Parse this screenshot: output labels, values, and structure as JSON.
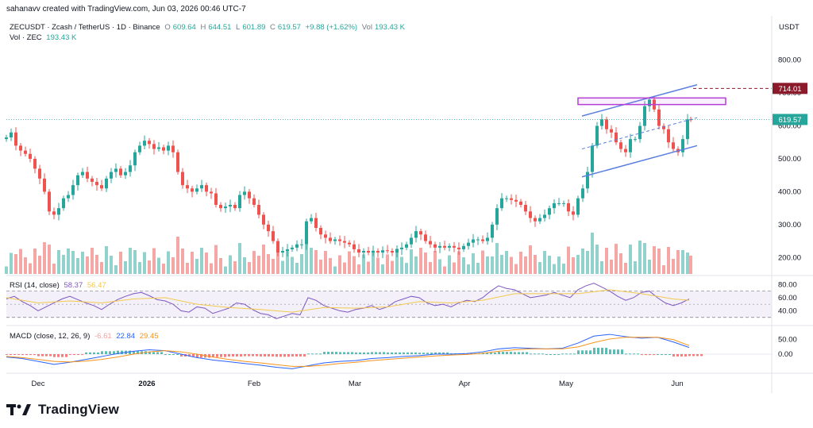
{
  "credit": "sahanavv created with TradingView.com, Jun 03, 2026 00:46 UTC-7",
  "legend": {
    "symbol": "ZECUSDT · Zcash / TetherUS · 1D · Binance",
    "open_label": "O",
    "open": "609.64",
    "high_label": "H",
    "high": "644.51",
    "low_label": "L",
    "low": "601.89",
    "close_label": "C",
    "close": "619.57",
    "change": "+9.88 (+1.62%)",
    "vol_label": "Vol",
    "vol": "193.43 K",
    "vol_line_label": "Vol · ZEC",
    "vol_line_value": "193.43 K"
  },
  "rsi_legend": {
    "label": "RSI (14, close)",
    "v1": "58.37",
    "v2": "56.47"
  },
  "macd_legend": {
    "label": "MACD (close, 12, 26, 9)",
    "v1": "-6.61",
    "v2": "22.84",
    "v3": "29.45"
  },
  "brand": {
    "name": "TradingView"
  },
  "colors": {
    "up": "#26a69a",
    "down": "#ef5350",
    "vol_up": "#92d2cc",
    "vol_down": "#f5a7a6",
    "channel": "#5b7fe0",
    "rsi": "#7e57c2",
    "rsi_ma": "#f2c94c",
    "macd": "#2962ff",
    "signal": "#f7931a",
    "box": "#b33fd6",
    "target": "#8b1a2b"
  },
  "chart_data": {
    "type": "candlestick",
    "title": "",
    "price_axis": {
      "unit": "USDT",
      "ticks": [
        "800.00",
        "700.00",
        "600.00",
        "500.00",
        "400.00",
        "300.00",
        "200.00"
      ],
      "range": [
        150,
        850
      ]
    },
    "time_axis": {
      "labels": [
        "Dec",
        "2026",
        "Feb",
        "Mar",
        "Apr",
        "May",
        "Jun"
      ]
    },
    "last_price_label": "619.57",
    "target_label": "714.01",
    "target_price": 714.01,
    "resistance_zone": [
      665,
      685
    ],
    "rsi_axis": {
      "ticks": [
        "80.00",
        "60.00",
        "40.00"
      ],
      "range": [
        20,
        90
      ],
      "bands": [
        30,
        70
      ]
    },
    "macd_axis": {
      "ticks": [
        "50.00",
        "0.00"
      ],
      "range": [
        -60,
        90
      ]
    },
    "grid": false,
    "series_close": [
      [
        0,
        565
      ],
      [
        6,
        580
      ],
      [
        12,
        540
      ],
      [
        18,
        525
      ],
      [
        24,
        515
      ],
      [
        30,
        500
      ],
      [
        36,
        470
      ],
      [
        42,
        440
      ],
      [
        48,
        400
      ],
      [
        54,
        340
      ],
      [
        60,
        330
      ],
      [
        66,
        350
      ],
      [
        72,
        380
      ],
      [
        78,
        390
      ],
      [
        84,
        420
      ],
      [
        90,
        450
      ],
      [
        96,
        460
      ],
      [
        102,
        440
      ],
      [
        108,
        430
      ],
      [
        114,
        420
      ],
      [
        120,
        410
      ],
      [
        126,
        440
      ],
      [
        132,
        460
      ],
      [
        138,
        470
      ],
      [
        144,
        450
      ],
      [
        150,
        460
      ],
      [
        156,
        480
      ],
      [
        162,
        520
      ],
      [
        168,
        540
      ],
      [
        174,
        555
      ],
      [
        180,
        545
      ],
      [
        186,
        530
      ],
      [
        192,
        535
      ],
      [
        198,
        525
      ],
      [
        204,
        540
      ],
      [
        210,
        520
      ],
      [
        216,
        460
      ],
      [
        222,
        420
      ],
      [
        228,
        410
      ],
      [
        234,
        400
      ],
      [
        240,
        410
      ],
      [
        246,
        420
      ],
      [
        252,
        400
      ],
      [
        258,
        395
      ],
      [
        264,
        360
      ],
      [
        270,
        350
      ],
      [
        276,
        355
      ],
      [
        282,
        360
      ],
      [
        288,
        350
      ],
      [
        294,
        390
      ],
      [
        300,
        400
      ],
      [
        306,
        380
      ],
      [
        312,
        360
      ],
      [
        318,
        330
      ],
      [
        324,
        300
      ],
      [
        330,
        280
      ],
      [
        336,
        250
      ],
      [
        342,
        215
      ],
      [
        348,
        220
      ],
      [
        354,
        225
      ],
      [
        360,
        230
      ],
      [
        366,
        240
      ],
      [
        372,
        240
      ],
      [
        378,
        310
      ],
      [
        384,
        320
      ],
      [
        390,
        290
      ],
      [
        396,
        270
      ],
      [
        402,
        260
      ],
      [
        408,
        250
      ],
      [
        414,
        255
      ],
      [
        420,
        250
      ],
      [
        426,
        245
      ],
      [
        432,
        240
      ],
      [
        438,
        225
      ],
      [
        444,
        215
      ],
      [
        450,
        220
      ],
      [
        456,
        215
      ],
      [
        462,
        220
      ],
      [
        468,
        215
      ],
      [
        474,
        222
      ],
      [
        480,
        220
      ],
      [
        486,
        215
      ],
      [
        492,
        225
      ],
      [
        498,
        230
      ],
      [
        504,
        240
      ],
      [
        510,
        260
      ],
      [
        516,
        280
      ],
      [
        522,
        270
      ],
      [
        528,
        250
      ],
      [
        534,
        240
      ],
      [
        540,
        230
      ],
      [
        546,
        235
      ],
      [
        552,
        230
      ],
      [
        558,
        235
      ],
      [
        564,
        230
      ],
      [
        570,
        225
      ],
      [
        576,
        235
      ],
      [
        582,
        245
      ],
      [
        588,
        255
      ],
      [
        594,
        255
      ],
      [
        600,
        250
      ],
      [
        606,
        260
      ],
      [
        612,
        300
      ],
      [
        618,
        350
      ],
      [
        624,
        380
      ],
      [
        630,
        380
      ],
      [
        636,
        375
      ],
      [
        642,
        370
      ],
      [
        648,
        360
      ],
      [
        654,
        340
      ],
      [
        660,
        320
      ],
      [
        666,
        310
      ],
      [
        672,
        320
      ],
      [
        678,
        330
      ],
      [
        684,
        350
      ],
      [
        690,
        365
      ],
      [
        696,
        365
      ],
      [
        702,
        365
      ],
      [
        708,
        340
      ],
      [
        714,
        330
      ],
      [
        720,
        380
      ],
      [
        726,
        410
      ],
      [
        732,
        460
      ],
      [
        738,
        540
      ],
      [
        744,
        600
      ],
      [
        750,
        620
      ],
      [
        756,
        590
      ],
      [
        762,
        580
      ],
      [
        768,
        550
      ],
      [
        774,
        530
      ],
      [
        780,
        520
      ],
      [
        786,
        560
      ],
      [
        792,
        560
      ],
      [
        798,
        600
      ],
      [
        804,
        660
      ],
      [
        810,
        680
      ],
      [
        816,
        650
      ],
      [
        822,
        600
      ],
      [
        828,
        590
      ],
      [
        834,
        550
      ],
      [
        840,
        530
      ],
      [
        846,
        520
      ],
      [
        852,
        560
      ],
      [
        858,
        620
      ],
      [
        862,
        619.57
      ]
    ],
    "rsi_points": [
      [
        0,
        58
      ],
      [
        10,
        62
      ],
      [
        20,
        54
      ],
      [
        30,
        48
      ],
      [
        40,
        40
      ],
      [
        50,
        46
      ],
      [
        60,
        52
      ],
      [
        70,
        58
      ],
      [
        80,
        62
      ],
      [
        90,
        57
      ],
      [
        100,
        52
      ],
      [
        110,
        48
      ],
      [
        120,
        42
      ],
      [
        130,
        50
      ],
      [
        140,
        57
      ],
      [
        150,
        62
      ],
      [
        160,
        66
      ],
      [
        170,
        68
      ],
      [
        180,
        63
      ],
      [
        190,
        57
      ],
      [
        200,
        55
      ],
      [
        210,
        50
      ],
      [
        220,
        40
      ],
      [
        230,
        38
      ],
      [
        240,
        46
      ],
      [
        250,
        44
      ],
      [
        260,
        36
      ],
      [
        270,
        40
      ],
      [
        280,
        44
      ],
      [
        290,
        52
      ],
      [
        300,
        50
      ],
      [
        310,
        42
      ],
      [
        320,
        36
      ],
      [
        330,
        34
      ],
      [
        340,
        28
      ],
      [
        350,
        32
      ],
      [
        360,
        36
      ],
      [
        370,
        34
      ],
      [
        380,
        60
      ],
      [
        390,
        56
      ],
      [
        400,
        48
      ],
      [
        410,
        44
      ],
      [
        420,
        40
      ],
      [
        430,
        38
      ],
      [
        440,
        42
      ],
      [
        450,
        44
      ],
      [
        460,
        48
      ],
      [
        470,
        42
      ],
      [
        480,
        46
      ],
      [
        490,
        54
      ],
      [
        500,
        58
      ],
      [
        510,
        62
      ],
      [
        520,
        60
      ],
      [
        530,
        52
      ],
      [
        540,
        48
      ],
      [
        550,
        50
      ],
      [
        560,
        46
      ],
      [
        570,
        52
      ],
      [
        580,
        56
      ],
      [
        590,
        54
      ],
      [
        600,
        60
      ],
      [
        610,
        70
      ],
      [
        620,
        78
      ],
      [
        630,
        74
      ],
      [
        640,
        72
      ],
      [
        650,
        66
      ],
      [
        660,
        60
      ],
      [
        670,
        62
      ],
      [
        680,
        64
      ],
      [
        690,
        68
      ],
      [
        700,
        64
      ],
      [
        710,
        60
      ],
      [
        720,
        72
      ],
      [
        730,
        78
      ],
      [
        740,
        82
      ],
      [
        750,
        76
      ],
      [
        760,
        70
      ],
      [
        770,
        62
      ],
      [
        780,
        56
      ],
      [
        790,
        60
      ],
      [
        800,
        68
      ],
      [
        810,
        70
      ],
      [
        820,
        60
      ],
      [
        830,
        52
      ],
      [
        840,
        48
      ],
      [
        850,
        52
      ],
      [
        860,
        58
      ]
    ],
    "rsi_ma_points": [
      [
        0,
        60
      ],
      [
        40,
        52
      ],
      [
        80,
        55
      ],
      [
        120,
        52
      ],
      [
        160,
        58
      ],
      [
        200,
        60
      ],
      [
        240,
        50
      ],
      [
        280,
        45
      ],
      [
        320,
        42
      ],
      [
        360,
        38
      ],
      [
        400,
        45
      ],
      [
        440,
        44
      ],
      [
        480,
        46
      ],
      [
        520,
        54
      ],
      [
        560,
        52
      ],
      [
        600,
        56
      ],
      [
        640,
        66
      ],
      [
        680,
        66
      ],
      [
        720,
        66
      ],
      [
        760,
        72
      ],
      [
        800,
        66
      ],
      [
        840,
        58
      ],
      [
        860,
        56
      ]
    ],
    "macd_points": [
      [
        0,
        -10
      ],
      [
        20,
        -15
      ],
      [
        40,
        -25
      ],
      [
        60,
        -35
      ],
      [
        80,
        -28
      ],
      [
        100,
        -18
      ],
      [
        120,
        -8
      ],
      [
        140,
        2
      ],
      [
        160,
        10
      ],
      [
        180,
        15
      ],
      [
        200,
        12
      ],
      [
        220,
        0
      ],
      [
        240,
        -12
      ],
      [
        260,
        -20
      ],
      [
        280,
        -26
      ],
      [
        300,
        -32
      ],
      [
        320,
        -38
      ],
      [
        340,
        -45
      ],
      [
        360,
        -50
      ],
      [
        380,
        -40
      ],
      [
        400,
        -30
      ],
      [
        420,
        -25
      ],
      [
        440,
        -22
      ],
      [
        460,
        -15
      ],
      [
        480,
        -12
      ],
      [
        500,
        -8
      ],
      [
        520,
        -5
      ],
      [
        540,
        0
      ],
      [
        560,
        0
      ],
      [
        580,
        2
      ],
      [
        600,
        8
      ],
      [
        620,
        18
      ],
      [
        640,
        22
      ],
      [
        660,
        20
      ],
      [
        680,
        18
      ],
      [
        700,
        20
      ],
      [
        720,
        38
      ],
      [
        740,
        62
      ],
      [
        760,
        68
      ],
      [
        780,
        60
      ],
      [
        800,
        55
      ],
      [
        820,
        58
      ],
      [
        840,
        42
      ],
      [
        860,
        22.84
      ]
    ],
    "signal_points": [
      [
        0,
        -8
      ],
      [
        20,
        -12
      ],
      [
        40,
        -18
      ],
      [
        60,
        -25
      ],
      [
        80,
        -27
      ],
      [
        100,
        -24
      ],
      [
        120,
        -18
      ],
      [
        140,
        -10
      ],
      [
        160,
        0
      ],
      [
        180,
        8
      ],
      [
        200,
        12
      ],
      [
        220,
        8
      ],
      [
        240,
        0
      ],
      [
        260,
        -10
      ],
      [
        280,
        -18
      ],
      [
        300,
        -25
      ],
      [
        320,
        -30
      ],
      [
        340,
        -36
      ],
      [
        360,
        -42
      ],
      [
        380,
        -42
      ],
      [
        400,
        -38
      ],
      [
        420,
        -32
      ],
      [
        440,
        -28
      ],
      [
        460,
        -22
      ],
      [
        480,
        -18
      ],
      [
        500,
        -14
      ],
      [
        520,
        -10
      ],
      [
        540,
        -6
      ],
      [
        560,
        -3
      ],
      [
        580,
        -1
      ],
      [
        600,
        3
      ],
      [
        620,
        10
      ],
      [
        640,
        15
      ],
      [
        660,
        18
      ],
      [
        680,
        18
      ],
      [
        700,
        18
      ],
      [
        720,
        25
      ],
      [
        740,
        40
      ],
      [
        760,
        52
      ],
      [
        780,
        58
      ],
      [
        800,
        58
      ],
      [
        820,
        58
      ],
      [
        840,
        50
      ],
      [
        860,
        29.45
      ]
    ]
  }
}
